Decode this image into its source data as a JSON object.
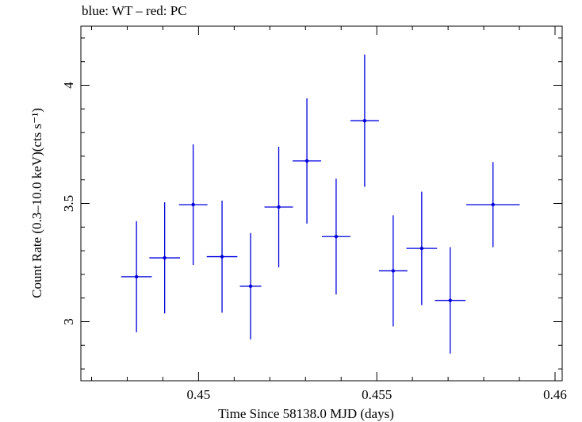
{
  "chart_data": {
    "type": "scatter",
    "title": "blue: WT – red: PC",
    "xlabel": "Time Since 58138.0 MJD (days)",
    "ylabel": "Count Rate (0.3–10.0 keV)(cts s⁻¹)",
    "xlim": [
      0.4467,
      0.4602
    ],
    "ylim": [
      2.75,
      4.25
    ],
    "xticks": [
      0.45,
      0.455,
      0.46
    ],
    "xtick_labels": [
      "0.45",
      "0.455",
      "0.46"
    ],
    "yticks": [
      3,
      3.5,
      4
    ],
    "ytick_labels": [
      "3",
      "3.5",
      "4"
    ],
    "grid": false,
    "series": [
      {
        "name": "WT",
        "color": "#0000dd",
        "points": [
          {
            "x": 0.44826,
            "xerr": 0.00043,
            "y": 3.19,
            "yerr": 0.235
          },
          {
            "x": 0.44905,
            "xerr": 0.00043,
            "y": 3.27,
            "yerr": 0.235
          },
          {
            "x": 0.44985,
            "xerr": 0.0004,
            "y": 3.495,
            "yerr": 0.255
          },
          {
            "x": 0.45066,
            "xerr": 0.00043,
            "y": 3.275,
            "yerr": 0.237
          },
          {
            "x": 0.45146,
            "xerr": 0.0003,
            "y": 3.15,
            "yerr": 0.225
          },
          {
            "x": 0.45225,
            "xerr": 0.0004,
            "y": 3.485,
            "yerr": 0.255
          },
          {
            "x": 0.45304,
            "xerr": 0.0004,
            "y": 3.68,
            "yerr": 0.265
          },
          {
            "x": 0.45386,
            "xerr": 0.0004,
            "y": 3.36,
            "yerr": 0.245
          },
          {
            "x": 0.45466,
            "xerr": 0.0004,
            "y": 3.85,
            "yerr": 0.28
          },
          {
            "x": 0.45546,
            "xerr": 0.0004,
            "y": 3.215,
            "yerr": 0.235
          },
          {
            "x": 0.45626,
            "xerr": 0.00043,
            "y": 3.31,
            "yerr": 0.24
          },
          {
            "x": 0.45706,
            "xerr": 0.00043,
            "y": 3.09,
            "yerr": 0.225
          },
          {
            "x": 0.45826,
            "xerr": 0.00075,
            "y": 3.495,
            "yerr": 0.18
          }
        ]
      }
    ]
  }
}
